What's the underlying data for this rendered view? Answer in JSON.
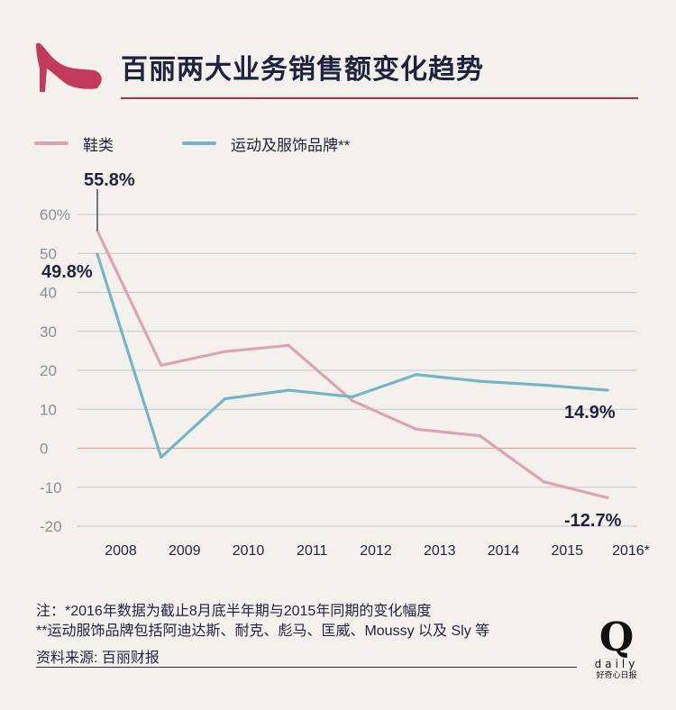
{
  "header": {
    "title": "百丽两大业务销售额变化趋势",
    "shoe_icon": "high-heel-shoe-icon",
    "accent_color": "#a8304e"
  },
  "legend": {
    "items": [
      {
        "label": "鞋类",
        "color": "#dca4b2"
      },
      {
        "label": "运动及服饰品牌**",
        "color": "#73b6c6"
      }
    ]
  },
  "chart_data": {
    "type": "line",
    "categories": [
      "2008",
      "2009",
      "2010",
      "2011",
      "2012",
      "2013",
      "2014",
      "2015",
      "2016*"
    ],
    "series": [
      {
        "name": "鞋类",
        "color": "#dca4b2",
        "values": [
          55.8,
          21.3,
          24.8,
          26.4,
          12.2,
          4.9,
          3.2,
          -8.6,
          -12.7
        ]
      },
      {
        "name": "运动及服饰品牌**",
        "color": "#73b6c6",
        "values": [
          49.8,
          -2.3,
          12.7,
          14.9,
          13.2,
          18.9,
          17.2,
          16.2,
          14.9
        ]
      }
    ],
    "y_ticks": [
      "60%",
      "50",
      "40",
      "30",
      "20",
      "10",
      "0",
      "-10",
      "-20"
    ],
    "y_tick_values": [
      60,
      50,
      40,
      30,
      20,
      10,
      0,
      -10,
      -20
    ],
    "ylim": [
      -20,
      60
    ],
    "annotations": [
      {
        "text": "55.8%",
        "series": 0,
        "index": 0
      },
      {
        "text": "49.8%",
        "series": 1,
        "index": 0
      },
      {
        "text": "14.9%",
        "series": 1,
        "index": 8
      },
      {
        "text": "-12.7%",
        "series": 0,
        "index": 8
      }
    ],
    "grid": true,
    "zero_line_color": "#d9a99a",
    "grid_color": "#c4c7d2"
  },
  "footer": {
    "note1": "注：*2016年数据为截止8月底半年期与2015年同期的变化幅度",
    "note2": "**运动服饰品牌包括阿迪达斯、耐克、彪马、匡威、Moussy 以及 Sly 等",
    "source": "资料来源: 百丽财报"
  },
  "logo": {
    "letter": "Q",
    "word": "daily",
    "sub": "好奇心日报"
  }
}
